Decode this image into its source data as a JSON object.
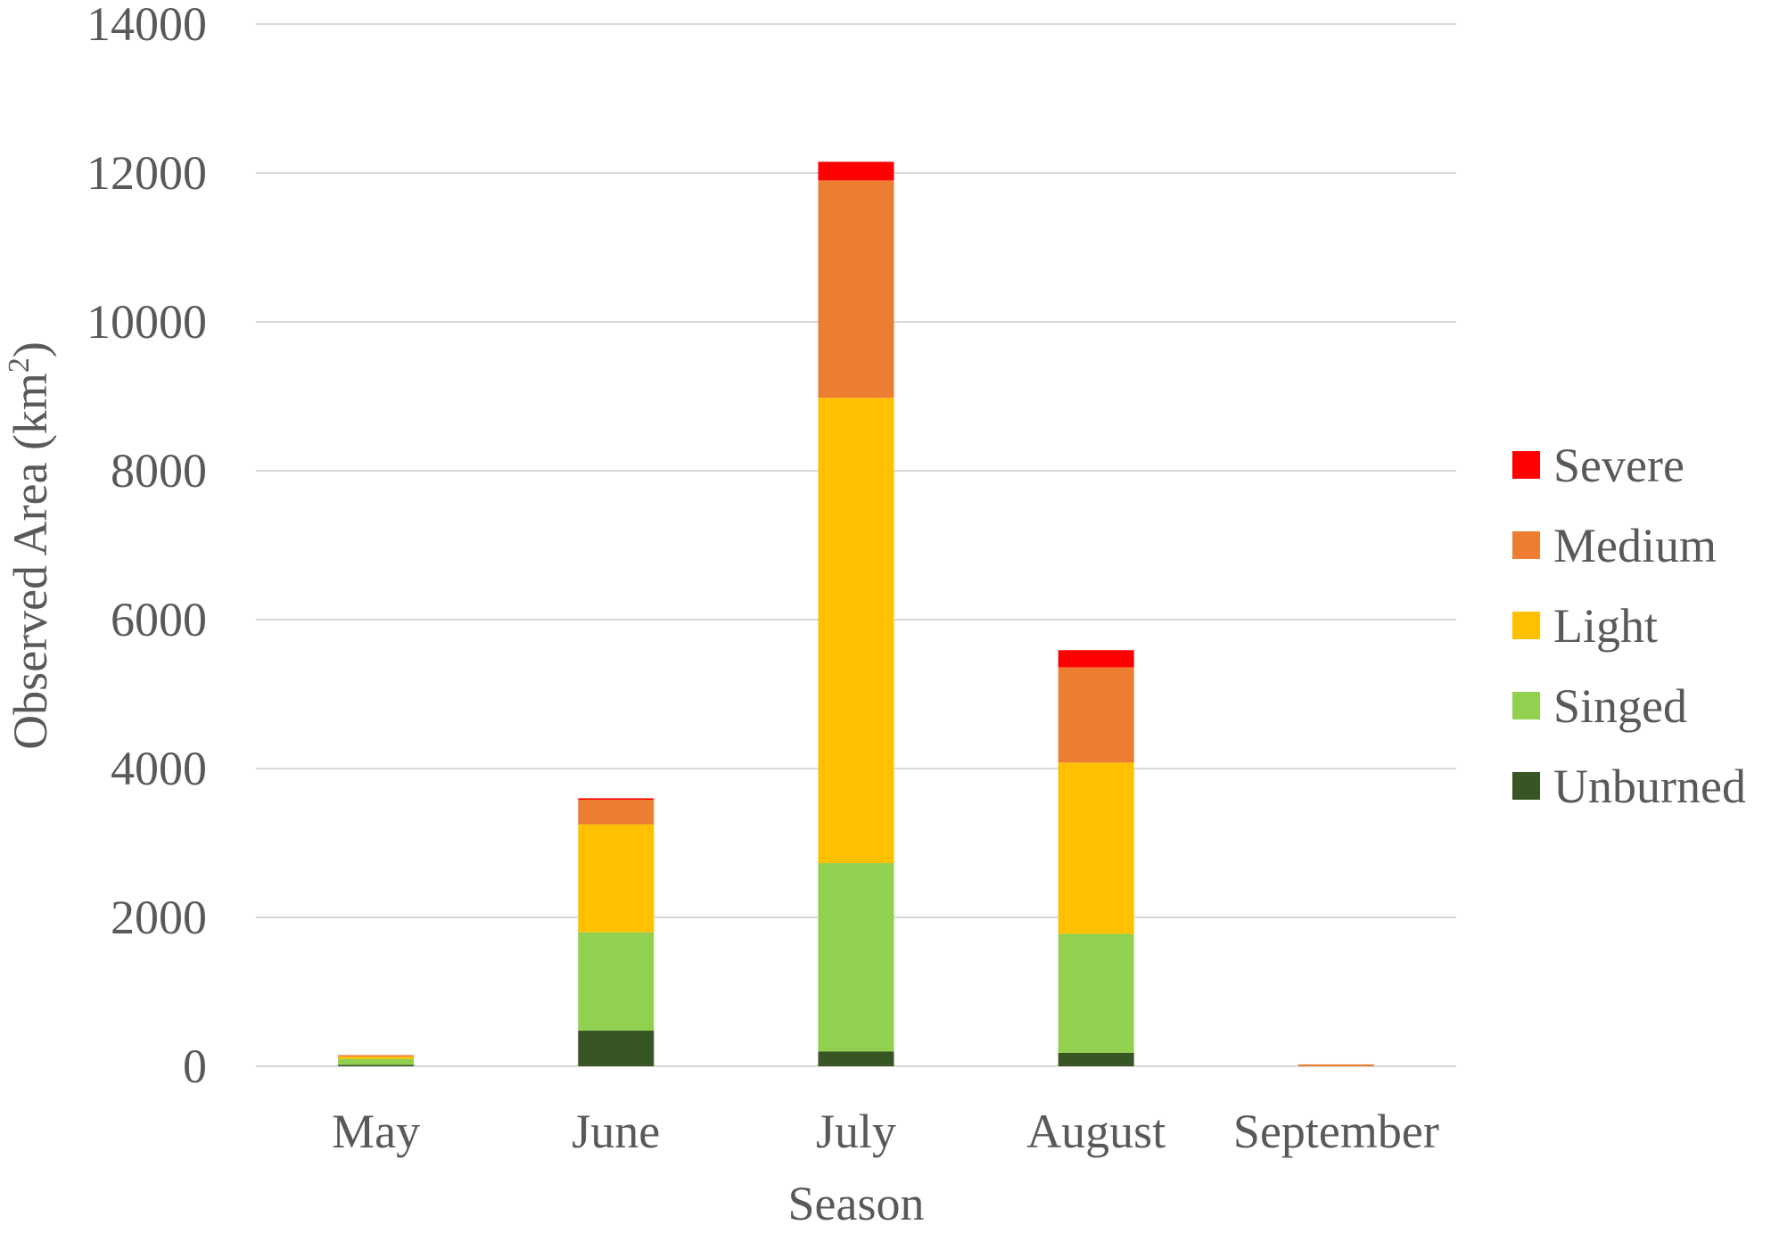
{
  "chart_data": {
    "type": "bar",
    "stacked": true,
    "categories": [
      "May",
      "June",
      "July",
      "August",
      "September"
    ],
    "series": [
      {
        "name": "Unburned",
        "color": "#375623",
        "values": [
          20,
          480,
          200,
          180,
          0
        ]
      },
      {
        "name": "Singed",
        "color": "#92D050",
        "values": [
          80,
          1320,
          2530,
          1600,
          0
        ]
      },
      {
        "name": "Light",
        "color": "#FFC000",
        "values": [
          30,
          1450,
          6250,
          2300,
          0
        ]
      },
      {
        "name": "Medium",
        "color": "#ED7D31",
        "values": [
          20,
          330,
          2920,
          1280,
          25
        ]
      },
      {
        "name": "Severe",
        "color": "#FF0000",
        "values": [
          0,
          20,
          250,
          230,
          0
        ]
      }
    ],
    "legend_order": [
      "Severe",
      "Medium",
      "Light",
      "Singed",
      "Unburned"
    ],
    "y_ticks": [
      "0",
      "2000",
      "4000",
      "6000",
      "8000",
      "10000",
      "12000",
      "14000"
    ],
    "ylim": [
      0,
      14000
    ],
    "xlabel": "Season",
    "ylabel_base": "Observed Area (km",
    "ylabel_sup": "2",
    "ylabel_close": ")",
    "grid": true,
    "legend_position": "right",
    "gridline_color": "#D9D9D9"
  }
}
